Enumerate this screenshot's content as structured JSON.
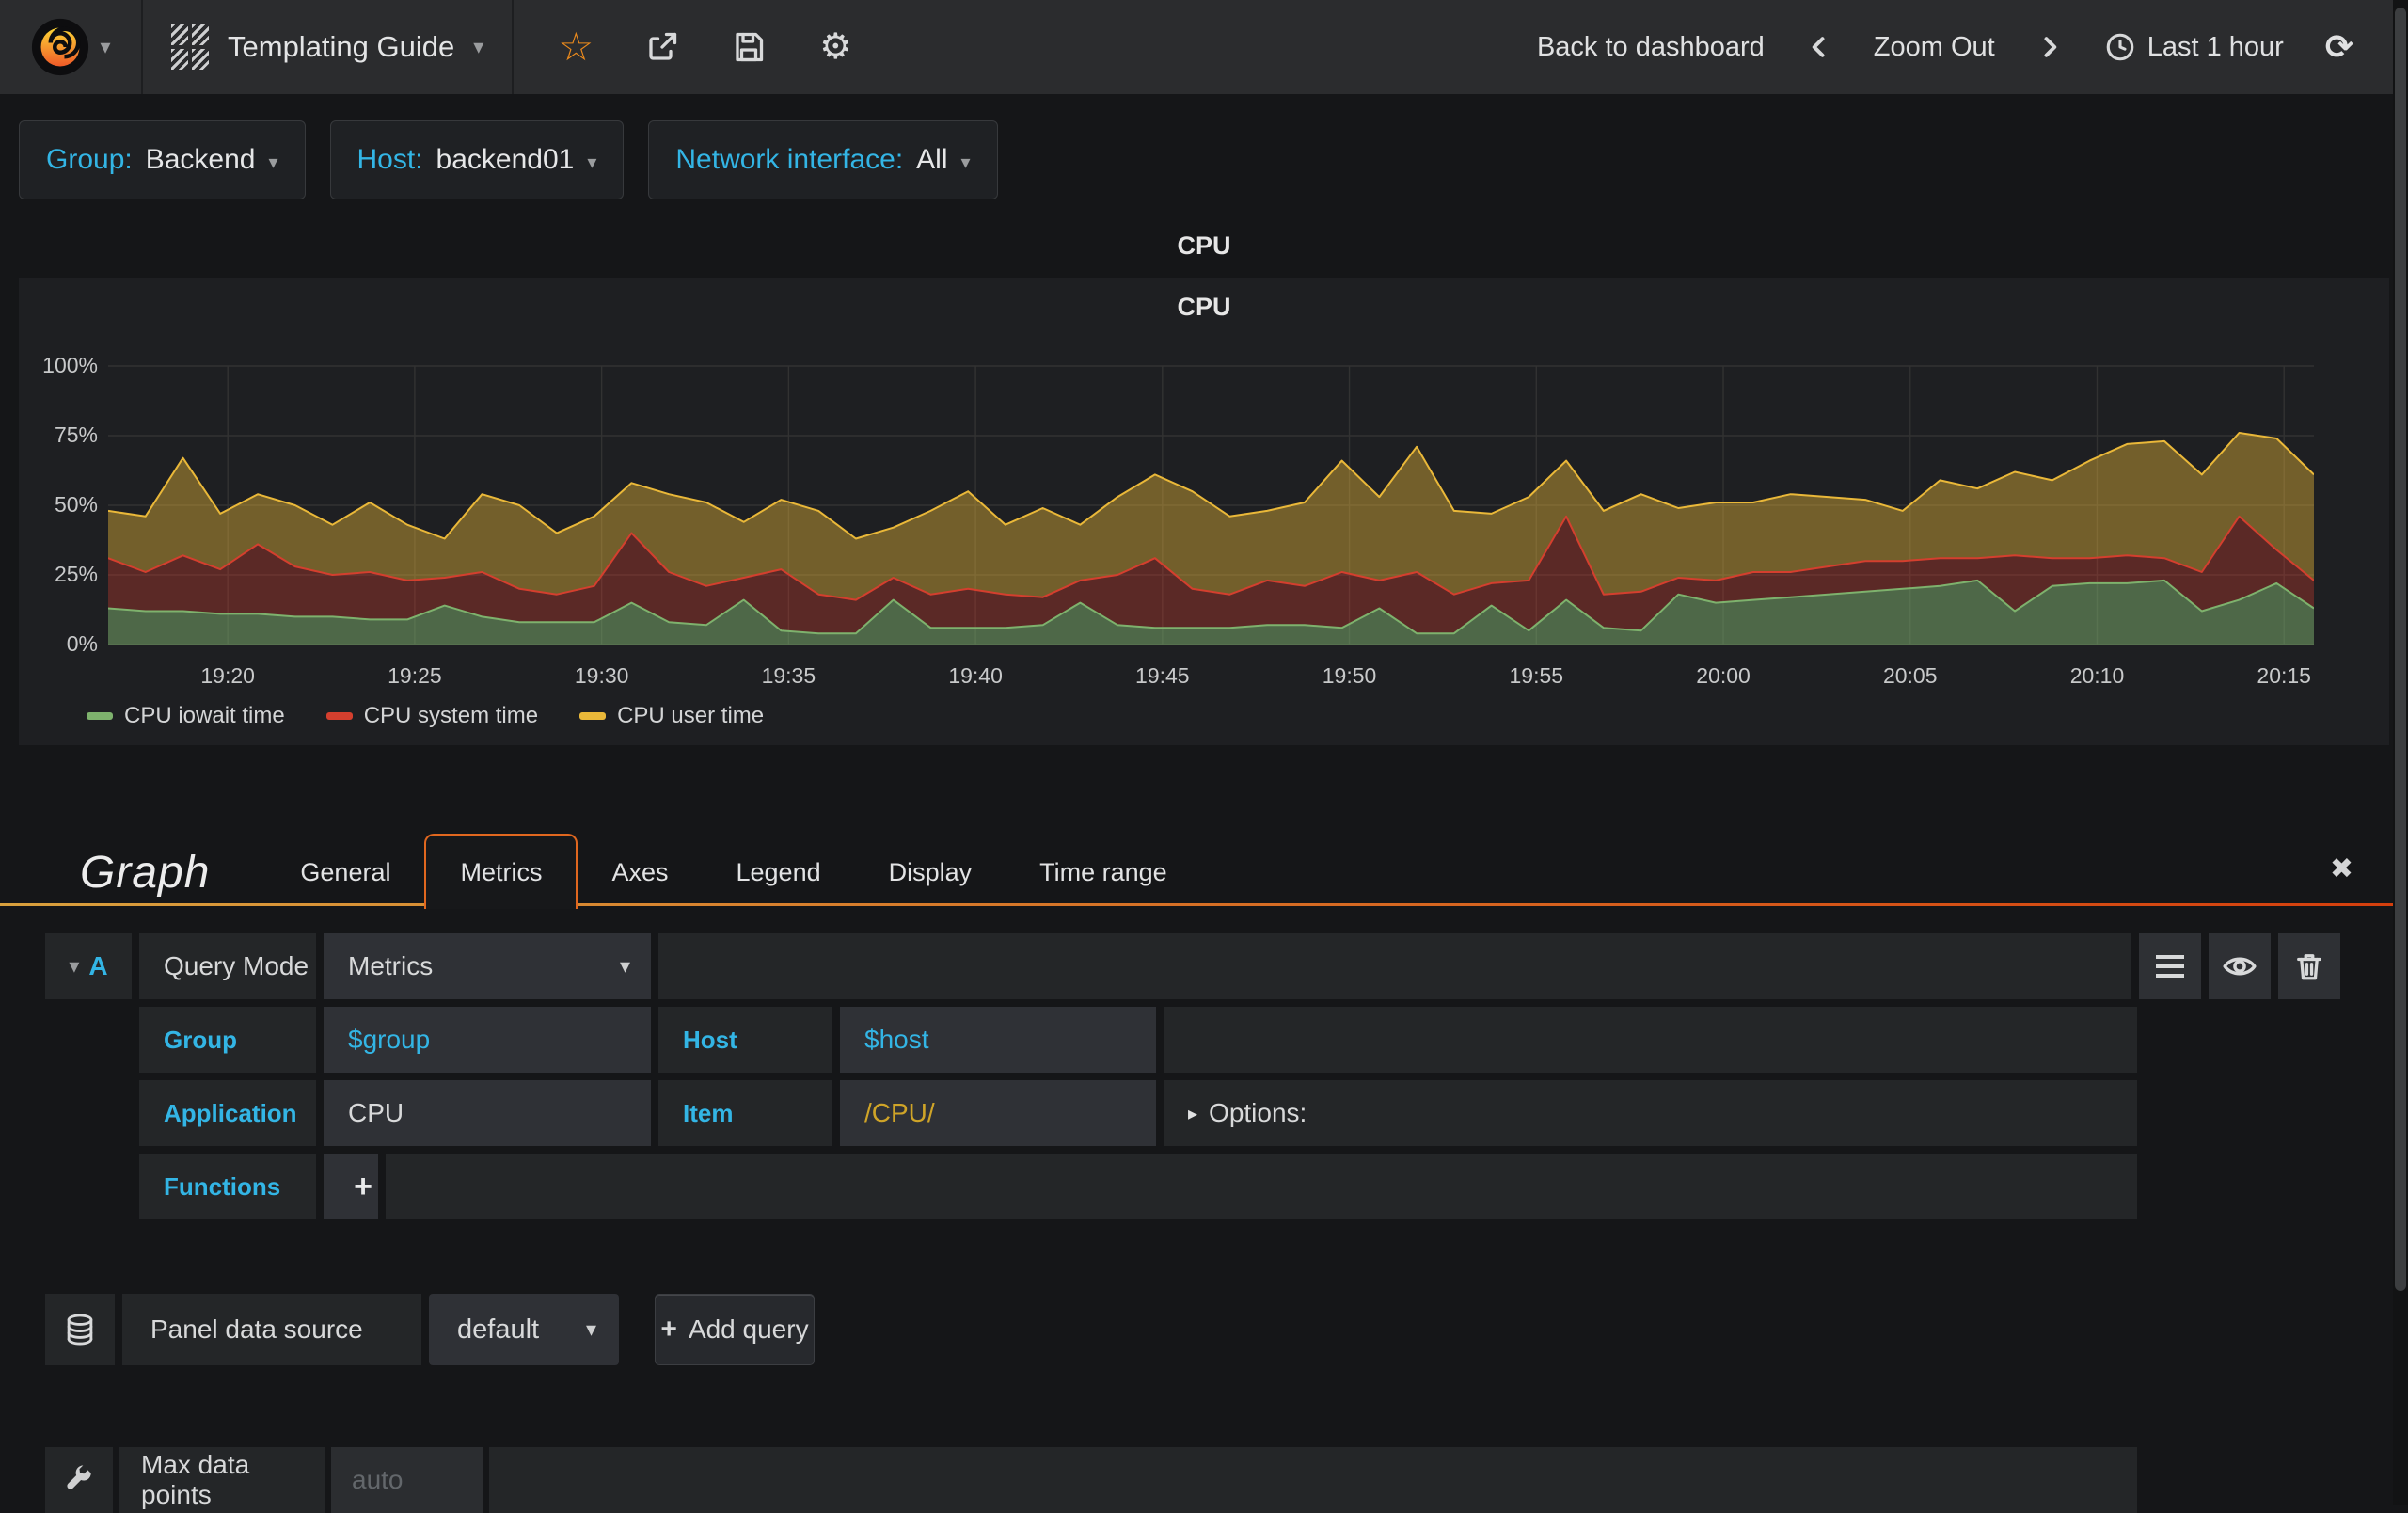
{
  "navbar": {
    "dashboard_title": "Templating Guide",
    "back_to_dashboard": "Back to dashboard",
    "zoom_out": "Zoom Out",
    "time_range": "Last 1 hour"
  },
  "icons": {
    "caret_down": "▾",
    "triangle_right": "▸",
    "star": "☆",
    "gear": "⚙",
    "refresh": "⟳",
    "close": "✖",
    "plus": "+"
  },
  "variables": [
    {
      "label": "Group:",
      "value": "Backend"
    },
    {
      "label": "Host:",
      "value": "backend01"
    },
    {
      "label": "Network interface:",
      "value": "All"
    }
  ],
  "panel": {
    "header_title": "CPU"
  },
  "chart_data": {
    "type": "area",
    "stacked": true,
    "title": "CPU",
    "xlabel": "",
    "ylabel": "",
    "ylim": [
      0,
      100
    ],
    "grid": true,
    "legend_position": "bottom-left",
    "y_ticks": [
      {
        "value": 0,
        "label": "0%"
      },
      {
        "value": 25,
        "label": "25%"
      },
      {
        "value": 50,
        "label": "50%"
      },
      {
        "value": 75,
        "label": "75%"
      },
      {
        "value": 100,
        "label": "100%"
      }
    ],
    "x_range_minutes": [
      0,
      59
    ],
    "x_ticks": [
      {
        "pos": 3.2,
        "label": "19:20"
      },
      {
        "pos": 8.2,
        "label": "19:25"
      },
      {
        "pos": 13.2,
        "label": "19:30"
      },
      {
        "pos": 18.2,
        "label": "19:35"
      },
      {
        "pos": 23.2,
        "label": "19:40"
      },
      {
        "pos": 28.2,
        "label": "19:45"
      },
      {
        "pos": 33.2,
        "label": "19:50"
      },
      {
        "pos": 38.2,
        "label": "19:55"
      },
      {
        "pos": 43.2,
        "label": "20:00"
      },
      {
        "pos": 48.2,
        "label": "20:05"
      },
      {
        "pos": 53.2,
        "label": "20:10"
      },
      {
        "pos": 58.2,
        "label": "20:15"
      }
    ],
    "series": [
      {
        "name": "CPU iowait time",
        "color": "#7EB26D",
        "fill_opacity": 0.5,
        "values": [
          13,
          12,
          12,
          11,
          11,
          10,
          10,
          9,
          9,
          14,
          10,
          8,
          8,
          8,
          15,
          8,
          7,
          16,
          5,
          4,
          4,
          16,
          6,
          6,
          6,
          7,
          15,
          7,
          6,
          6,
          6,
          7,
          7,
          6,
          13,
          4,
          4,
          14,
          5,
          16,
          6,
          5,
          18,
          15,
          16,
          17,
          18,
          19,
          20,
          21,
          23,
          12,
          21,
          22,
          22,
          23,
          12,
          16,
          22,
          13
        ]
      },
      {
        "name": "CPU system time",
        "color": "#D43F2E",
        "fill_opacity": 0.34,
        "values": [
          18,
          14,
          20,
          16,
          25,
          18,
          15,
          17,
          14,
          10,
          16,
          12,
          10,
          13,
          25,
          18,
          14,
          8,
          22,
          14,
          12,
          8,
          12,
          14,
          12,
          10,
          8,
          18,
          25,
          14,
          12,
          16,
          14,
          20,
          10,
          22,
          14,
          8,
          18,
          30,
          12,
          14,
          6,
          8,
          10,
          9,
          10,
          11,
          10,
          10,
          8,
          20,
          10,
          9,
          10,
          8,
          14,
          30,
          12,
          10
        ]
      },
      {
        "name": "CPU user time",
        "color": "#EAB839",
        "fill_opacity": 0.42,
        "values": [
          17,
          20,
          35,
          20,
          18,
          22,
          18,
          25,
          20,
          14,
          28,
          30,
          22,
          25,
          18,
          28,
          30,
          20,
          25,
          30,
          22,
          18,
          30,
          35,
          25,
          32,
          20,
          28,
          30,
          35,
          28,
          25,
          30,
          40,
          30,
          45,
          30,
          25,
          30,
          20,
          30,
          35,
          25,
          28,
          25,
          28,
          25,
          22,
          18,
          28,
          25,
          30,
          28,
          35,
          40,
          42,
          35,
          30,
          40,
          38
        ]
      }
    ]
  },
  "editor": {
    "panel_type_title": "Graph",
    "tabs": [
      "General",
      "Metrics",
      "Axes",
      "Legend",
      "Display",
      "Time range"
    ],
    "active_tab": "Metrics",
    "query": {
      "ref_id": "A",
      "query_mode_label": "Query Mode",
      "query_mode_value": "Metrics",
      "group_label": "Group",
      "group_value": "$group",
      "host_label": "Host",
      "host_value": "$host",
      "application_label": "Application",
      "application_value": "CPU",
      "item_label": "Item",
      "item_value": "/CPU/",
      "options_label": "Options:",
      "functions_label": "Functions"
    },
    "datasource": {
      "label": "Panel data source",
      "value": "default",
      "add_query_label": "Add query"
    },
    "max_data_points_label": "Max data points",
    "max_data_points_placeholder": "auto"
  },
  "colors": {
    "accent_cyan": "#33b5e5",
    "star_orange": "#eb8a1c",
    "tab_border_orange": "#e0671f",
    "regex_yellow": "#cfa428",
    "tab_underline_gradient": [
      "#d8a03d",
      "#d43f0d"
    ]
  }
}
